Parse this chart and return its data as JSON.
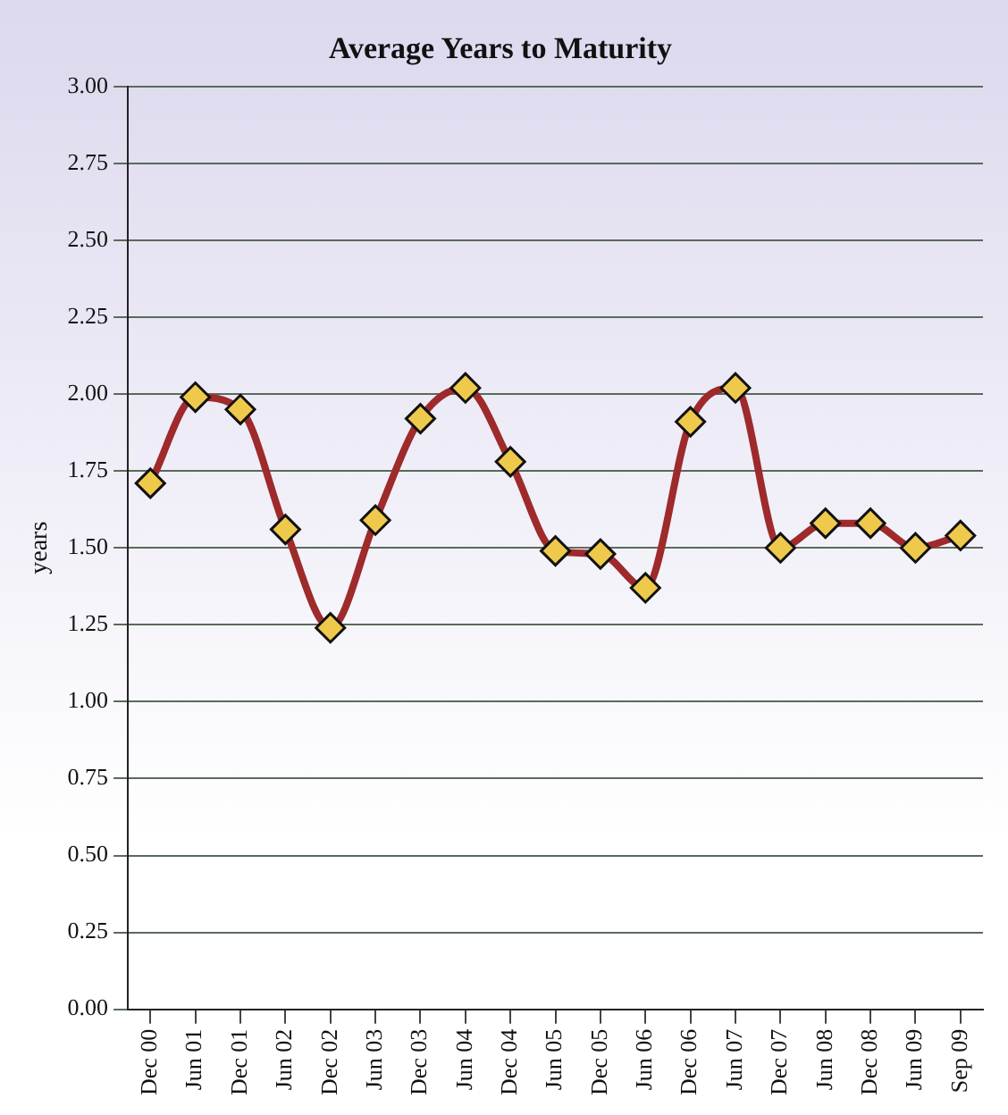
{
  "chart_data": {
    "type": "line",
    "title": "Average Years to Maturity",
    "ylabel": "years",
    "categories": [
      "Dec 00",
      "Jun 01",
      "Dec 01",
      "Jun 02",
      "Dec 02",
      "Jun 03",
      "Dec 03",
      "Jun 04",
      "Dec 04",
      "Jun 05",
      "Dec 05",
      "Jun 06",
      "Dec 06",
      "Jun 07",
      "Dec 07",
      "Jun 08",
      "Dec 08",
      "Jun 09",
      "Sep 09"
    ],
    "series": [
      {
        "color": "#9e2a2b",
        "values": [
          1.71,
          1.99,
          1.95,
          1.56,
          1.24,
          1.59,
          1.92,
          2.02,
          1.78,
          1.49,
          1.48,
          1.37,
          1.91,
          2.02,
          1.5,
          1.58,
          1.58,
          1.5,
          1.54
        ]
      }
    ],
    "ylim": [
      0,
      3
    ],
    "yticks": [
      {
        "value": 0,
        "label": "0.00"
      },
      {
        "value": 0.25,
        "label": "0.25"
      },
      {
        "value": 0.5,
        "label": "0.50"
      },
      {
        "value": 0.75,
        "label": "0.75"
      },
      {
        "value": 1,
        "label": "1.00"
      },
      {
        "value": 1.25,
        "label": "1.25"
      },
      {
        "value": 1.5,
        "label": "1.50"
      },
      {
        "value": 1.75,
        "label": "1.75"
      },
      {
        "value": 2,
        "label": "2.00"
      },
      {
        "value": 2.25,
        "label": "2.25"
      },
      {
        "value": 2.5,
        "label": "2.50"
      },
      {
        "value": 2.75,
        "label": "2.75"
      },
      {
        "value": 3,
        "label": "3.00"
      }
    ],
    "grid": "y",
    "legend": false,
    "marker": "diamond",
    "line_style": "solid"
  }
}
